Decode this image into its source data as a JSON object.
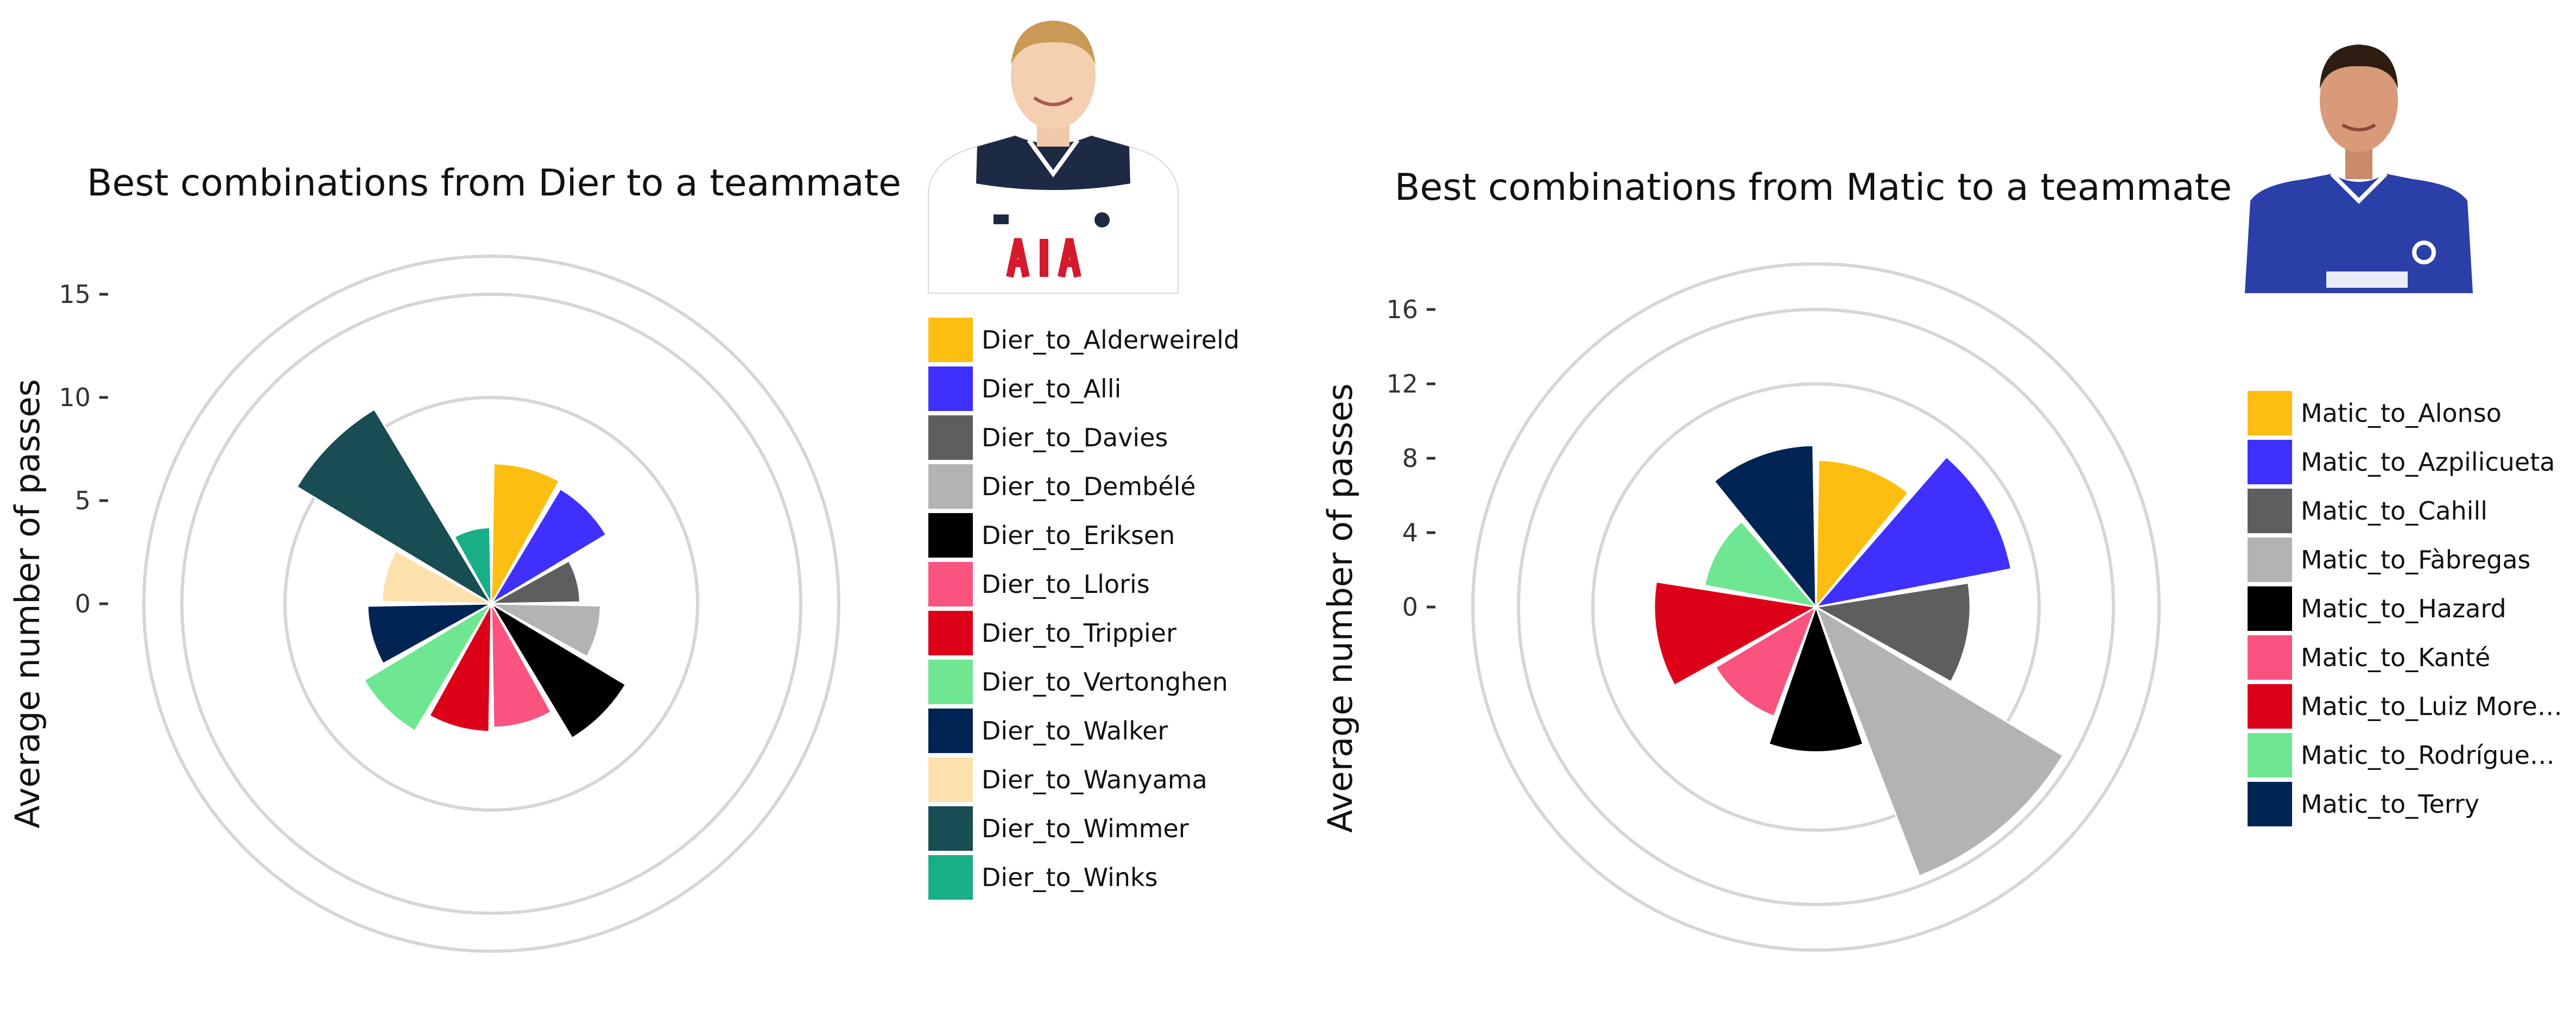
{
  "chart_data": [
    {
      "type": "bar",
      "coord": "polar",
      "title": "Best combinations from Dier to a teammate",
      "ylabel": "Average number of passes",
      "yticks": [
        "0",
        "5",
        "10",
        "15"
      ],
      "ylim": [
        -5,
        20
      ],
      "grid": true,
      "legend_position": "right",
      "categories": [
        "Dier_to_Alderweireld",
        "Dier_to_Alli",
        "Dier_to_Davies",
        "Dier_to_Dembélé",
        "Dier_to_Eriksen",
        "Dier_to_Lloris",
        "Dier_to_Trippier",
        "Dier_to_Vertonghen",
        "Dier_to_Walker",
        "Dier_to_Wanyama",
        "Dier_to_Wimmer",
        "Dier_to_Winks"
      ],
      "values": [
        6.8,
        6.5,
        4.3,
        5.3,
        7.6,
        6.0,
        6.2,
        7.2,
        6.0,
        5.3,
        11.0,
        3.7
      ],
      "colors": [
        "#FDBE11",
        "#4030FF",
        "#5E5E5E",
        "#B3B3B3",
        "#000000",
        "#FA5380",
        "#DC0019",
        "#6FE792",
        "#002454",
        "#FDE1AC",
        "#174D53",
        "#17AE88"
      ],
      "player_photo": "Eric Dier, Tottenham Hotspur kit"
    },
    {
      "type": "bar",
      "coord": "polar",
      "title": "Best combinations from Matic to a teammate",
      "ylabel": "Average number of passes",
      "yticks": [
        "0",
        "4",
        "8",
        "12",
        "16"
      ],
      "ylim": [
        -4,
        20
      ],
      "grid": true,
      "legend_position": "right",
      "categories": [
        "Matic_to_Alonso",
        "Matic_to_Azpilicueta",
        "Matic_to_Cahill",
        "Matic_to_Fàbregas",
        "Matic_to_Hazard",
        "Matic_to_Kanté",
        "Matic_to_Luiz More…",
        "Matic_to_Rodrígue…",
        "Matic_to_Terry"
      ],
      "values": [
        7.9,
        10.7,
        8.3,
        15.5,
        7.8,
        6.3,
        8.7,
        6.1,
        8.7
      ],
      "colors": [
        "#FDBE11",
        "#4030FF",
        "#5E5E5E",
        "#B3B3B3",
        "#000000",
        "#FA5380",
        "#DC0019",
        "#6FE792",
        "#002454"
      ],
      "player_photo": "Nemanja Matic, Chelsea kit"
    }
  ]
}
